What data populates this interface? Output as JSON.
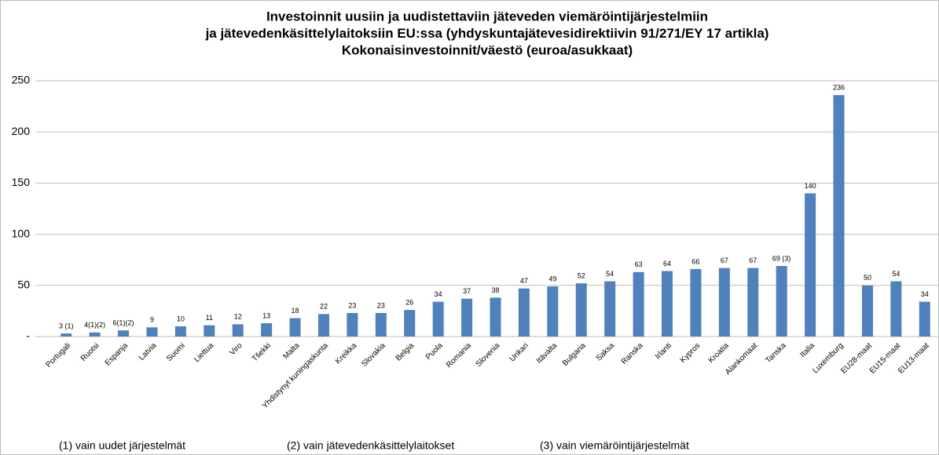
{
  "chart_data": {
    "type": "bar",
    "title_lines": [
      "Investoinnit uusiin ja uudistettaviin jäteveden viemäröintijärjestelmiin",
      "ja jätevedenkäsittelylaitoksiin EU:ssa (yhdyskuntajätevesidirektiivin 91/271/EY 17 artikla)",
      "Kokonaisinvestoinnit/väestö (euroa/asukkaat)"
    ],
    "categories": [
      "Portugali",
      "Ruotsi",
      "Espanja",
      "Latvia",
      "Suomi",
      "Liettua",
      "Viro",
      "Tšekki",
      "Malta",
      "Yhdistynyt kuningaskunta",
      "Kreikka",
      "Slovakia",
      "Belgia",
      "Puola",
      "Romania",
      "Slovenia",
      "Unkari",
      "Itävalta",
      "Bulgaria",
      "Saksa",
      "Ranska",
      "Irlanti",
      "Kypros",
      "Kroatia",
      "Alankomaat",
      "Tanska",
      "Italia",
      "Luxemburg",
      "EU28-maat",
      "EU15-maat",
      "EU13-maat"
    ],
    "values": [
      3,
      4,
      6,
      9,
      10,
      11,
      12,
      13,
      18,
      22,
      23,
      23,
      26,
      34,
      37,
      38,
      47,
      49,
      52,
      54,
      63,
      64,
      66,
      67,
      67,
      69,
      140,
      236,
      50,
      54,
      34
    ],
    "value_labels": [
      "3 (1)",
      "4(1)(2)",
      "6(1)(2)",
      "9",
      "10",
      "11",
      "12",
      "13",
      "18",
      "22",
      "23",
      "23",
      "26",
      "34",
      "37",
      "38",
      "47",
      "49",
      "52",
      "54",
      "63",
      "64",
      "66",
      "67",
      "67",
      "69 (3)",
      "140",
      "236",
      "50",
      "54",
      "34"
    ],
    "color": "#4f81bd",
    "ylim": [
      0,
      250
    ],
    "yticks": [
      {
        "value": 0,
        "label": "-"
      },
      50,
      100,
      150,
      200,
      250
    ],
    "grid": true,
    "footnotes": [
      "(1) vain uudet järjestelmät",
      "(2) vain jätevedenkäsittelylaitokset",
      "(3) vain viemäröintijärjestelmät"
    ]
  }
}
